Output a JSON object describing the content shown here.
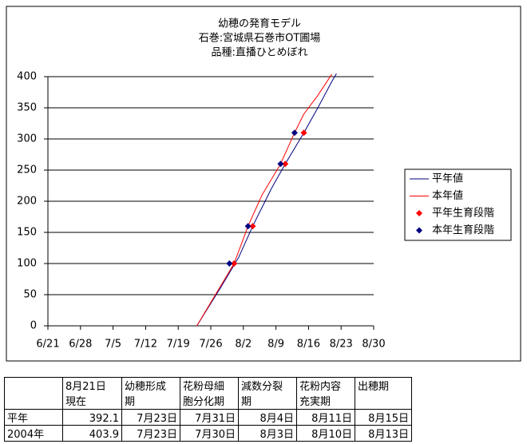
{
  "chart_data": {
    "type": "line",
    "title": [
      "幼穂の発育モデル",
      "石巻:宮城県石巻市OT圃場",
      "品種:直播ひとめぼれ"
    ],
    "xlim": [
      "6/21",
      "8/30"
    ],
    "xticks": [
      "6/21",
      "6/28",
      "7/5",
      "7/12",
      "7/19",
      "7/26",
      "8/2",
      "8/9",
      "8/16",
      "8/23",
      "8/30"
    ],
    "ylim": [
      0,
      400
    ],
    "yticks": [
      0,
      50,
      100,
      150,
      200,
      250,
      300,
      350,
      400
    ],
    "grid": true,
    "legend": "right",
    "series": [
      {
        "name": "平年値",
        "type": "line",
        "color": "#000080",
        "x": [
          "7/23",
          "7/28",
          "8/1",
          "8/4",
          "8/8",
          "8/11",
          "8/15",
          "8/18",
          "8/21",
          "8/22"
        ],
        "values": [
          0,
          60,
          110,
          160,
          220,
          260,
          310,
          350,
          392.1,
          405
        ]
      },
      {
        "name": "本年値",
        "type": "line",
        "color": "#ff0000",
        "x": [
          "7/23",
          "7/27",
          "7/31",
          "8/3",
          "8/6",
          "8/10",
          "8/13",
          "8/15",
          "8/18",
          "8/21"
        ],
        "values": [
          0,
          50,
          100,
          160,
          210,
          260,
          310,
          340,
          370,
          403.9
        ]
      },
      {
        "name": "平年生育段階",
        "type": "scatter",
        "color": "#ff0000",
        "x": [
          "7/31",
          "8/4",
          "8/11",
          "8/15"
        ],
        "values": [
          100,
          160,
          260,
          310
        ]
      },
      {
        "name": "本年生育段階",
        "type": "scatter",
        "color": "#000080",
        "x": [
          "7/30",
          "8/3",
          "8/10",
          "8/13"
        ],
        "values": [
          100,
          160,
          260,
          310
        ]
      }
    ]
  },
  "table": {
    "header": [
      "",
      "8月21日\n現在",
      "幼穂形成\n期",
      "花粉母細\n胞分化期",
      "減数分裂\n期",
      "花粉内容\n充実期",
      "出穂期"
    ],
    "rows": [
      [
        "平年",
        "392.1",
        "7月23日",
        "7月31日",
        "8月4日",
        "8月11日",
        "8月15日"
      ],
      [
        "2004年",
        "403.9",
        "7月23日",
        "7月30日",
        "8月3日",
        "8月10日",
        "8月13日"
      ]
    ]
  }
}
